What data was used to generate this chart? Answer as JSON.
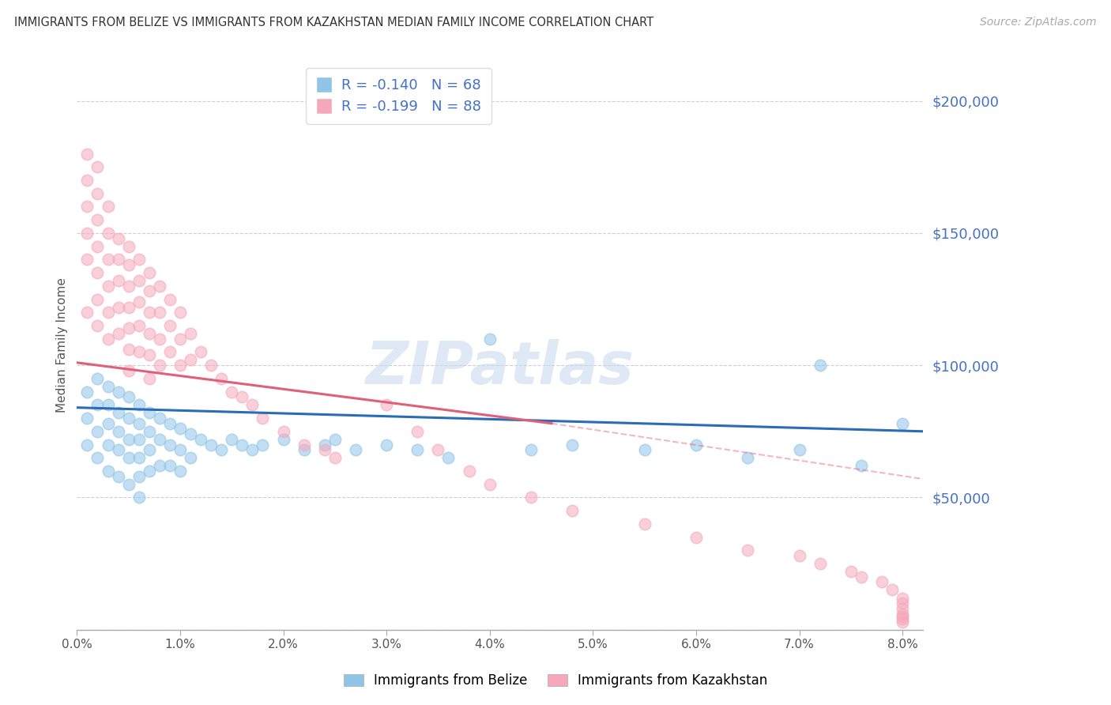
{
  "title": "IMMIGRANTS FROM BELIZE VS IMMIGRANTS FROM KAZAKHSTAN MEDIAN FAMILY INCOME CORRELATION CHART",
  "source": "Source: ZipAtlas.com",
  "ylabel": "Median Family Income",
  "xlim": [
    0.0,
    0.082
  ],
  "ylim": [
    0,
    215000
  ],
  "yticks": [
    0,
    50000,
    100000,
    150000,
    200000
  ],
  "xticks": [
    0.0,
    0.01,
    0.02,
    0.03,
    0.04,
    0.05,
    0.06,
    0.07,
    0.08
  ],
  "xtick_labels": [
    "0.0%",
    "1.0%",
    "2.0%",
    "3.0%",
    "4.0%",
    "5.0%",
    "6.0%",
    "7.0%",
    "8.0%"
  ],
  "belize_color": "#90c4e8",
  "kazakhstan_color": "#f5a8bc",
  "belize_line_color": "#2b6cb8",
  "kazakhstan_line_color": "#e0607a",
  "legend_r_belize": "R = -0.140",
  "legend_n_belize": "N = 68",
  "legend_r_kaz": "R = -0.199",
  "legend_n_kaz": "N = 88",
  "watermark": "ZIPatlas",
  "label_belize": "Immigrants from Belize",
  "label_kaz": "Immigrants from Kazakhstan",
  "ytick_color": "#4472c4",
  "background_color": "#ffffff",
  "grid_color": "#d0d0d0",
  "belize_trend_x0": 0.0,
  "belize_trend_x1": 0.082,
  "belize_trend_y0": 84000,
  "belize_trend_y1": 75000,
  "kaz_trend_solid_x0": 0.0,
  "kaz_trend_solid_x1": 0.046,
  "kaz_trend_y0": 101000,
  "kaz_trend_y1": 78000,
  "kaz_trend_dash_x0": 0.046,
  "kaz_trend_dash_x1": 0.082,
  "kaz_trend_dash_y0": 78000,
  "kaz_trend_dash_y1": 57000,
  "belize_x": [
    0.001,
    0.001,
    0.001,
    0.002,
    0.002,
    0.002,
    0.002,
    0.003,
    0.003,
    0.003,
    0.003,
    0.003,
    0.004,
    0.004,
    0.004,
    0.004,
    0.004,
    0.005,
    0.005,
    0.005,
    0.005,
    0.005,
    0.006,
    0.006,
    0.006,
    0.006,
    0.006,
    0.006,
    0.007,
    0.007,
    0.007,
    0.007,
    0.008,
    0.008,
    0.008,
    0.009,
    0.009,
    0.009,
    0.01,
    0.01,
    0.01,
    0.011,
    0.011,
    0.012,
    0.013,
    0.014,
    0.015,
    0.016,
    0.017,
    0.018,
    0.02,
    0.022,
    0.024,
    0.025,
    0.027,
    0.03,
    0.033,
    0.036,
    0.04,
    0.044,
    0.048,
    0.055,
    0.06,
    0.065,
    0.07,
    0.072,
    0.076,
    0.08
  ],
  "belize_y": [
    90000,
    80000,
    70000,
    95000,
    85000,
    75000,
    65000,
    92000,
    85000,
    78000,
    70000,
    60000,
    90000,
    82000,
    75000,
    68000,
    58000,
    88000,
    80000,
    72000,
    65000,
    55000,
    85000,
    78000,
    72000,
    65000,
    58000,
    50000,
    82000,
    75000,
    68000,
    60000,
    80000,
    72000,
    62000,
    78000,
    70000,
    62000,
    76000,
    68000,
    60000,
    74000,
    65000,
    72000,
    70000,
    68000,
    72000,
    70000,
    68000,
    70000,
    72000,
    68000,
    70000,
    72000,
    68000,
    70000,
    68000,
    65000,
    110000,
    68000,
    70000,
    68000,
    70000,
    65000,
    68000,
    100000,
    62000,
    78000
  ],
  "kaz_x": [
    0.001,
    0.001,
    0.001,
    0.001,
    0.001,
    0.001,
    0.002,
    0.002,
    0.002,
    0.002,
    0.002,
    0.002,
    0.002,
    0.003,
    0.003,
    0.003,
    0.003,
    0.003,
    0.003,
    0.004,
    0.004,
    0.004,
    0.004,
    0.004,
    0.005,
    0.005,
    0.005,
    0.005,
    0.005,
    0.005,
    0.005,
    0.006,
    0.006,
    0.006,
    0.006,
    0.006,
    0.007,
    0.007,
    0.007,
    0.007,
    0.007,
    0.007,
    0.008,
    0.008,
    0.008,
    0.008,
    0.009,
    0.009,
    0.009,
    0.01,
    0.01,
    0.01,
    0.011,
    0.011,
    0.012,
    0.013,
    0.014,
    0.015,
    0.016,
    0.017,
    0.018,
    0.02,
    0.022,
    0.024,
    0.025,
    0.03,
    0.033,
    0.035,
    0.038,
    0.04,
    0.044,
    0.048,
    0.055,
    0.06,
    0.065,
    0.07,
    0.072,
    0.075,
    0.076,
    0.078,
    0.079,
    0.08,
    0.08,
    0.08,
    0.08,
    0.08,
    0.08,
    0.08
  ],
  "kaz_y": [
    180000,
    170000,
    160000,
    150000,
    140000,
    120000,
    175000,
    165000,
    155000,
    145000,
    135000,
    125000,
    115000,
    160000,
    150000,
    140000,
    130000,
    120000,
    110000,
    148000,
    140000,
    132000,
    122000,
    112000,
    145000,
    138000,
    130000,
    122000,
    114000,
    106000,
    98000,
    140000,
    132000,
    124000,
    115000,
    105000,
    135000,
    128000,
    120000,
    112000,
    104000,
    95000,
    130000,
    120000,
    110000,
    100000,
    125000,
    115000,
    105000,
    120000,
    110000,
    100000,
    112000,
    102000,
    105000,
    100000,
    95000,
    90000,
    88000,
    85000,
    80000,
    75000,
    70000,
    68000,
    65000,
    85000,
    75000,
    68000,
    60000,
    55000,
    50000,
    45000,
    40000,
    35000,
    30000,
    28000,
    25000,
    22000,
    20000,
    18000,
    15000,
    12000,
    10000,
    8000,
    6000,
    5000,
    4000,
    3000
  ]
}
